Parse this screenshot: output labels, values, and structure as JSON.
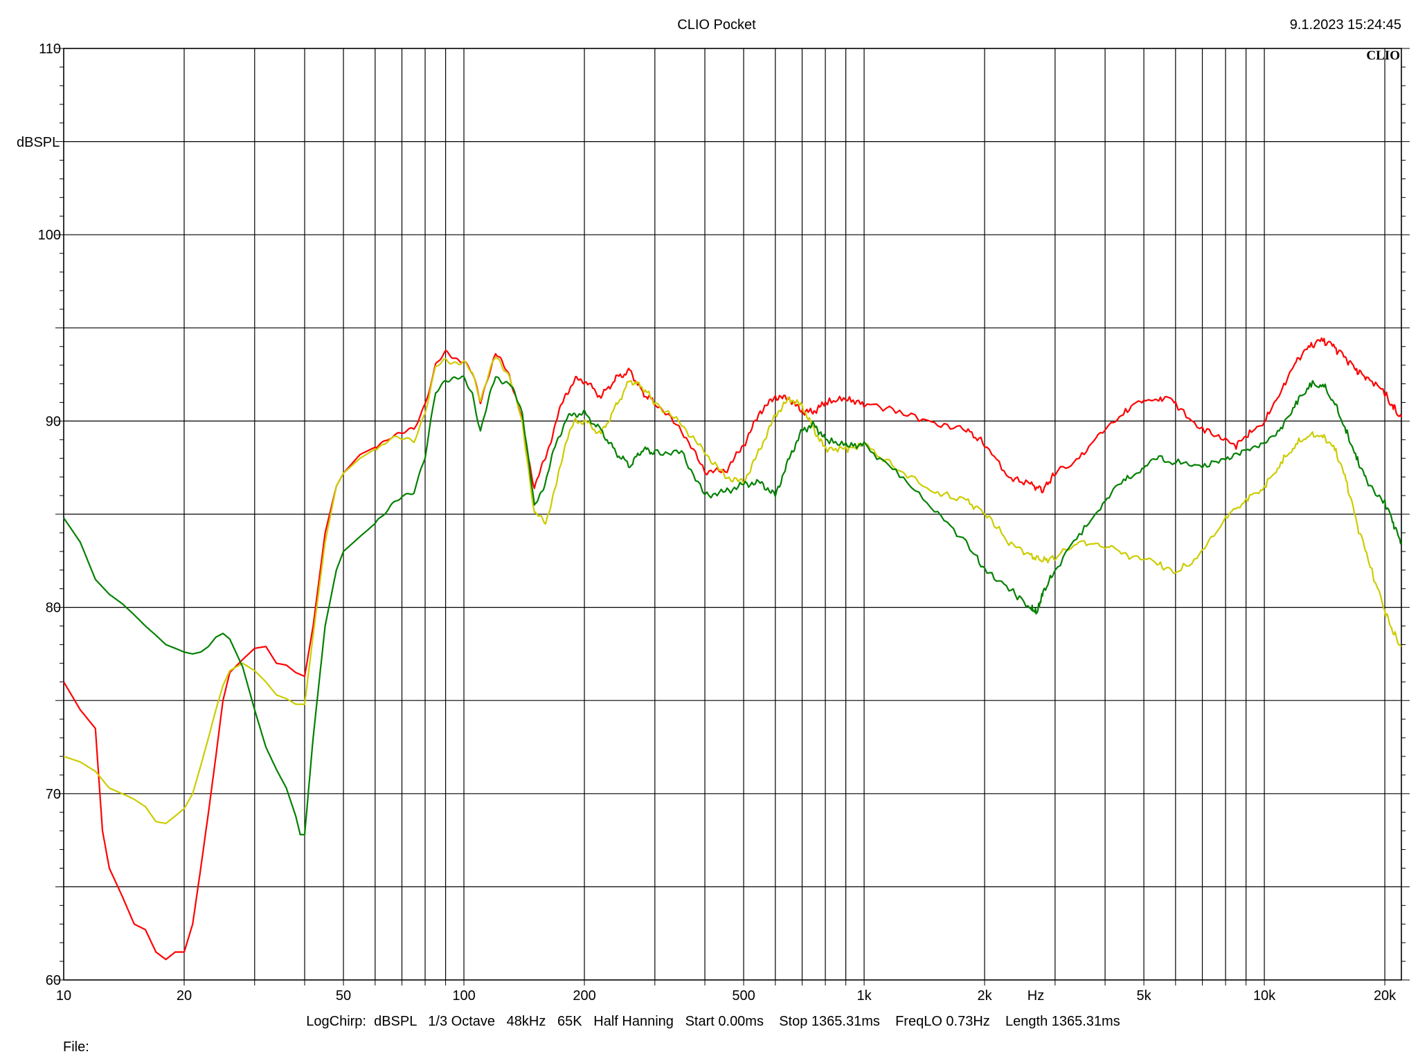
{
  "header": {
    "title": "CLIO Pocket",
    "timestamp": "9.1.2023 15:24:45",
    "logo": "CLIO"
  },
  "footer": {
    "settings": "LogChirp:  dBSPL   1/3 Octave   48kHz   65K   Half Hanning   Start 0.00ms    Stop 1365.31ms    FreqLO 0.73Hz    Length 1365.31ms",
    "file_label": "File:"
  },
  "chart_data": {
    "type": "line",
    "title": "CLIO Pocket",
    "xlabel": "Hz",
    "ylabel": "dBSPL",
    "x_scale": "log",
    "xlim": [
      10,
      22000
    ],
    "ylim": [
      60,
      110
    ],
    "grid": true,
    "x_tick_labels": [
      {
        "value": 10,
        "label": "10"
      },
      {
        "value": 20,
        "label": "20"
      },
      {
        "value": 50,
        "label": "50"
      },
      {
        "value": 100,
        "label": "100"
      },
      {
        "value": 200,
        "label": "200"
      },
      {
        "value": 500,
        "label": "500"
      },
      {
        "value": 1000,
        "label": "1k"
      },
      {
        "value": 2000,
        "label": "2k"
      },
      {
        "value": 5000,
        "label": "5k"
      },
      {
        "value": 10000,
        "label": "10k"
      },
      {
        "value": 20000,
        "label": "20k"
      }
    ],
    "y_tick_labels": [
      {
        "value": 60,
        "label": "60"
      },
      {
        "value": 70,
        "label": "70"
      },
      {
        "value": 80,
        "label": "80"
      },
      {
        "value": 90,
        "label": "90"
      },
      {
        "value": 100,
        "label": "100"
      },
      {
        "value": 110,
        "label": "110"
      }
    ],
    "series": [
      {
        "color": "#ff0000",
        "points": [
          [
            10,
            76
          ],
          [
            11,
            74.5
          ],
          [
            12,
            73.5
          ],
          [
            12.5,
            68
          ],
          [
            13,
            66
          ],
          [
            14,
            64.5
          ],
          [
            15,
            63
          ],
          [
            16,
            62.7
          ],
          [
            17,
            61.5
          ],
          [
            18,
            61.1
          ],
          [
            19,
            61.5
          ],
          [
            20,
            61.5
          ],
          [
            21,
            63
          ],
          [
            22,
            66
          ],
          [
            23,
            69
          ],
          [
            24,
            72
          ],
          [
            25,
            75
          ],
          [
            26,
            76.5
          ],
          [
            28,
            77.2
          ],
          [
            30,
            77.8
          ],
          [
            32,
            77.9
          ],
          [
            34,
            77
          ],
          [
            36,
            76.9
          ],
          [
            38,
            76.5
          ],
          [
            40,
            76.3
          ],
          [
            42,
            79
          ],
          [
            45,
            84
          ],
          [
            48,
            86.5
          ],
          [
            50,
            87.2
          ],
          [
            55,
            88.2
          ],
          [
            60,
            88.6
          ],
          [
            65,
            89.2
          ],
          [
            70,
            89.3
          ],
          [
            75,
            89.5
          ],
          [
            80,
            91
          ],
          [
            85,
            93
          ],
          [
            90,
            93.6
          ],
          [
            95,
            93.4
          ],
          [
            100,
            93.3
          ],
          [
            105,
            92.5
          ],
          [
            110,
            91
          ],
          [
            115,
            92.5
          ],
          [
            120,
            93.6
          ],
          [
            130,
            92.5
          ],
          [
            140,
            90
          ],
          [
            145,
            88
          ],
          [
            150,
            86.5
          ],
          [
            160,
            88
          ],
          [
            170,
            90
          ],
          [
            180,
            91.5
          ],
          [
            190,
            92.2
          ],
          [
            200,
            92.2
          ],
          [
            220,
            91.3
          ],
          [
            240,
            92.3
          ],
          [
            260,
            92.7
          ],
          [
            280,
            91.5
          ],
          [
            300,
            91
          ],
          [
            350,
            89.5
          ],
          [
            400,
            87.3
          ],
          [
            450,
            87.3
          ],
          [
            500,
            88.7
          ],
          [
            550,
            90.5
          ],
          [
            600,
            91.3
          ],
          [
            650,
            91.2
          ],
          [
            700,
            90.5
          ],
          [
            750,
            90.5
          ],
          [
            800,
            91
          ],
          [
            900,
            91.2
          ],
          [
            1000,
            90.9
          ],
          [
            1200,
            90.6
          ],
          [
            1500,
            89.9
          ],
          [
            1800,
            89.5
          ],
          [
            2000,
            88.8
          ],
          [
            2300,
            87
          ],
          [
            2600,
            86.6
          ],
          [
            2800,
            86.3
          ],
          [
            3000,
            87.2
          ],
          [
            3500,
            88.2
          ],
          [
            4000,
            89.5
          ],
          [
            4500,
            90.6
          ],
          [
            5000,
            91
          ],
          [
            5500,
            91.3
          ],
          [
            6000,
            90.9
          ],
          [
            7000,
            89.6
          ],
          [
            8000,
            89.1
          ],
          [
            8500,
            88.6
          ],
          [
            9000,
            89.2
          ],
          [
            10000,
            90
          ],
          [
            11000,
            91.6
          ],
          [
            12000,
            93.2
          ],
          [
            13000,
            94
          ],
          [
            14000,
            94.3
          ],
          [
            15000,
            93.9
          ],
          [
            16000,
            93.3
          ],
          [
            17000,
            92.7
          ],
          [
            18000,
            92.3
          ],
          [
            20000,
            91.5
          ],
          [
            21000,
            90.8
          ],
          [
            22000,
            90.2
          ]
        ]
      },
      {
        "color": "#cccc00",
        "points": [
          [
            10,
            72
          ],
          [
            11,
            71.7
          ],
          [
            12,
            71.2
          ],
          [
            13,
            70.3
          ],
          [
            14,
            70
          ],
          [
            15,
            69.7
          ],
          [
            16,
            69.3
          ],
          [
            17,
            68.5
          ],
          [
            18,
            68.4
          ],
          [
            19,
            68.8
          ],
          [
            20,
            69.2
          ],
          [
            21,
            70
          ],
          [
            22,
            71.5
          ],
          [
            23,
            73
          ],
          [
            24,
            74.5
          ],
          [
            25,
            75.8
          ],
          [
            26,
            76.6
          ],
          [
            28,
            77
          ],
          [
            30,
            76.6
          ],
          [
            32,
            76
          ],
          [
            34,
            75.3
          ],
          [
            36,
            75.1
          ],
          [
            38,
            74.8
          ],
          [
            40,
            74.8
          ],
          [
            42,
            78.5
          ],
          [
            45,
            83.5
          ],
          [
            48,
            86.5
          ],
          [
            50,
            87.2
          ],
          [
            55,
            88
          ],
          [
            60,
            88.5
          ],
          [
            65,
            89
          ],
          [
            70,
            89
          ],
          [
            75,
            89
          ],
          [
            80,
            90.5
          ],
          [
            85,
            92.8
          ],
          [
            90,
            93.3
          ],
          [
            95,
            93.2
          ],
          [
            100,
            93.1
          ],
          [
            105,
            92.5
          ],
          [
            110,
            91.2
          ],
          [
            115,
            92.5
          ],
          [
            120,
            93.4
          ],
          [
            130,
            92.5
          ],
          [
            140,
            89.8
          ],
          [
            145,
            87.5
          ],
          [
            150,
            85
          ],
          [
            160,
            84.6
          ],
          [
            170,
            86.5
          ],
          [
            180,
            89
          ],
          [
            190,
            90
          ],
          [
            200,
            90
          ],
          [
            220,
            89.3
          ],
          [
            240,
            90.8
          ],
          [
            260,
            92.2
          ],
          [
            280,
            91.8
          ],
          [
            300,
            91
          ],
          [
            350,
            89.8
          ],
          [
            400,
            88.3
          ],
          [
            450,
            87
          ],
          [
            500,
            86.7
          ],
          [
            550,
            88.5
          ],
          [
            600,
            90.3
          ],
          [
            650,
            91.2
          ],
          [
            700,
            90.8
          ],
          [
            750,
            89.5
          ],
          [
            800,
            88.5
          ],
          [
            900,
            88.5
          ],
          [
            1000,
            88.7
          ],
          [
            1200,
            87.5
          ],
          [
            1500,
            86.2
          ],
          [
            1800,
            85.7
          ],
          [
            2000,
            85.1
          ],
          [
            2300,
            83.5
          ],
          [
            2600,
            82.8
          ],
          [
            2800,
            82.5
          ],
          [
            3000,
            82.7
          ],
          [
            3500,
            83.5
          ],
          [
            4000,
            83.3
          ],
          [
            4500,
            82.8
          ],
          [
            5000,
            82.6
          ],
          [
            5500,
            82.3
          ],
          [
            6000,
            81.8
          ],
          [
            7000,
            83
          ],
          [
            8000,
            84.8
          ],
          [
            9000,
            85.8
          ],
          [
            10000,
            86.5
          ],
          [
            11000,
            87.8
          ],
          [
            12000,
            88.8
          ],
          [
            13000,
            89.3
          ],
          [
            14000,
            89.2
          ],
          [
            15000,
            88.5
          ],
          [
            16000,
            86.8
          ],
          [
            17000,
            84.5
          ],
          [
            18000,
            82.8
          ],
          [
            20000,
            79.8
          ],
          [
            21000,
            78.7
          ],
          [
            22000,
            77.9
          ]
        ]
      },
      {
        "color": "#008000",
        "points": [
          [
            10,
            84.8
          ],
          [
            11,
            83.5
          ],
          [
            12,
            81.5
          ],
          [
            13,
            80.7
          ],
          [
            14,
            80.2
          ],
          [
            15,
            79.6
          ],
          [
            16,
            79
          ],
          [
            17,
            78.5
          ],
          [
            18,
            78
          ],
          [
            19,
            77.8
          ],
          [
            20,
            77.6
          ],
          [
            21,
            77.5
          ],
          [
            22,
            77.6
          ],
          [
            23,
            77.9
          ],
          [
            24,
            78.4
          ],
          [
            25,
            78.6
          ],
          [
            26,
            78.3
          ],
          [
            28,
            76.8
          ],
          [
            30,
            74.5
          ],
          [
            32,
            72.5
          ],
          [
            34,
            71.3
          ],
          [
            36,
            70.3
          ],
          [
            38,
            68.8
          ],
          [
            39,
            67.8
          ],
          [
            40,
            67.8
          ],
          [
            42,
            73
          ],
          [
            45,
            79
          ],
          [
            48,
            82
          ],
          [
            50,
            83
          ],
          [
            55,
            83.8
          ],
          [
            60,
            84.5
          ],
          [
            65,
            85.2
          ],
          [
            70,
            86
          ],
          [
            75,
            86.3
          ],
          [
            80,
            88
          ],
          [
            85,
            91.5
          ],
          [
            90,
            92.3
          ],
          [
            95,
            92.3
          ],
          [
            100,
            92.2
          ],
          [
            105,
            91.5
          ],
          [
            110,
            89.5
          ],
          [
            115,
            91
          ],
          [
            120,
            92.4
          ],
          [
            130,
            92
          ],
          [
            140,
            90.5
          ],
          [
            145,
            88
          ],
          [
            150,
            85.3
          ],
          [
            160,
            86.8
          ],
          [
            170,
            88.8
          ],
          [
            180,
            90.1
          ],
          [
            190,
            90.4
          ],
          [
            200,
            90.4
          ],
          [
            220,
            89.5
          ],
          [
            240,
            88.3
          ],
          [
            260,
            87.6
          ],
          [
            280,
            88.5
          ],
          [
            300,
            88.3
          ],
          [
            350,
            88.3
          ],
          [
            400,
            86
          ],
          [
            450,
            86.2
          ],
          [
            500,
            86.6
          ],
          [
            550,
            86.7
          ],
          [
            600,
            86
          ],
          [
            650,
            88
          ],
          [
            700,
            89.5
          ],
          [
            750,
            89.8
          ],
          [
            800,
            89
          ],
          [
            900,
            88.7
          ],
          [
            1000,
            88.7
          ],
          [
            1200,
            87.3
          ],
          [
            1500,
            85.2
          ],
          [
            1800,
            83.5
          ],
          [
            2000,
            82
          ],
          [
            2300,
            81
          ],
          [
            2600,
            80
          ],
          [
            2700,
            79.7
          ],
          [
            2800,
            80.8
          ],
          [
            3000,
            82
          ],
          [
            3500,
            84
          ],
          [
            4000,
            85.8
          ],
          [
            4500,
            86.8
          ],
          [
            5000,
            87.6
          ],
          [
            5500,
            88
          ],
          [
            6000,
            87.8
          ],
          [
            7000,
            87.5
          ],
          [
            8000,
            87.9
          ],
          [
            9000,
            88.4
          ],
          [
            10000,
            88.8
          ],
          [
            11000,
            89.6
          ],
          [
            12000,
            91
          ],
          [
            13000,
            92
          ],
          [
            14000,
            92
          ],
          [
            15000,
            91
          ],
          [
            16000,
            89.5
          ],
          [
            17000,
            88
          ],
          [
            18000,
            86.8
          ],
          [
            20000,
            85.6
          ],
          [
            21000,
            84.5
          ],
          [
            22000,
            83.4
          ]
        ]
      }
    ]
  }
}
